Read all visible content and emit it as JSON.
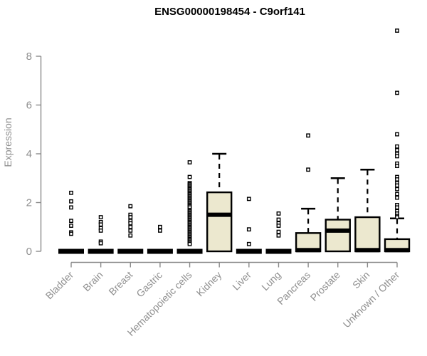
{
  "title": "ENSG00000198454 - C9orf141",
  "chart_data": {
    "type": "boxplot",
    "title": "ENSG00000198454 - C9orf141",
    "xlabel": "",
    "ylabel": "Expression",
    "ylim": [
      0,
      8
    ],
    "yticks": [
      0,
      2,
      4,
      6,
      8
    ],
    "grid": false,
    "legend": "none",
    "categories": [
      "Bladder",
      "Brain",
      "Breast",
      "Gastric",
      "Hematopoietic cells",
      "Kidney",
      "Liver",
      "Lung",
      "Pancreas",
      "Prostate",
      "Skin",
      "Unknown / Other"
    ],
    "boxes": [
      {
        "category": "Bladder",
        "q1": 0,
        "median": 0,
        "q3": 0,
        "whisker_low": 0,
        "whisker_high": 0,
        "outliers": [
          2.4,
          2.05,
          1.8,
          1.25,
          1.05,
          0.78,
          0.72
        ]
      },
      {
        "category": "Brain",
        "q1": 0,
        "median": 0,
        "q3": 0,
        "whisker_low": 0,
        "whisker_high": 0,
        "outliers": [
          1.4,
          1.2,
          1.1,
          0.95,
          0.85,
          0.4,
          0.33
        ]
      },
      {
        "category": "Breast",
        "q1": 0,
        "median": 0,
        "q3": 0,
        "whisker_low": 0,
        "whisker_high": 0,
        "outliers": [
          1.85,
          1.5,
          1.4,
          1.25,
          1.15,
          1.0,
          0.85,
          0.65
        ]
      },
      {
        "category": "Gastric",
        "q1": 0,
        "median": 0,
        "q3": 0,
        "whisker_low": 0,
        "whisker_high": 0,
        "outliers": [
          1.0,
          0.85
        ]
      },
      {
        "category": "Hematopoietic cells",
        "q1": 0,
        "median": 0,
        "q3": 0,
        "whisker_low": 0,
        "whisker_high": 0,
        "outliers": [
          3.65,
          3.05,
          2.8,
          2.75,
          2.7,
          2.65,
          2.6,
          2.55,
          2.5,
          2.45,
          2.4,
          2.35,
          2.3,
          2.25,
          2.2,
          2.15,
          2.1,
          2.05,
          2.0,
          1.95,
          1.9,
          1.85,
          1.8,
          1.7,
          1.65,
          1.6,
          1.55,
          1.5,
          1.45,
          1.4,
          1.35,
          1.3,
          1.25,
          1.2,
          1.15,
          1.1,
          1.05,
          1.0,
          0.95,
          0.9,
          0.85,
          0.8,
          0.75,
          0.7,
          0.65,
          0.6,
          0.55,
          0.5,
          0.45,
          0.4,
          0.35,
          0.3
        ]
      },
      {
        "category": "Kidney",
        "q1": 0,
        "median": 1.5,
        "q3": 2.42,
        "whisker_low": 0,
        "whisker_high": 4.0,
        "outliers": []
      },
      {
        "category": "Liver",
        "q1": 0,
        "median": 0,
        "q3": 0,
        "whisker_low": 0,
        "whisker_high": 0,
        "outliers": [
          2.15,
          0.9,
          0.3
        ]
      },
      {
        "category": "Lung",
        "q1": 0,
        "median": 0,
        "q3": 0,
        "whisker_low": 0,
        "whisker_high": 0,
        "outliers": [
          1.55,
          1.3,
          1.15,
          1.05,
          0.8,
          0.65
        ]
      },
      {
        "category": "Pancreas",
        "q1": 0,
        "median": 0.05,
        "q3": 0.75,
        "whisker_low": 0,
        "whisker_high": 1.75,
        "outliers": [
          4.75,
          3.35
        ]
      },
      {
        "category": "Prostate",
        "q1": 0,
        "median": 0.85,
        "q3": 1.3,
        "whisker_low": 0,
        "whisker_high": 3.0,
        "outliers": []
      },
      {
        "category": "Skin",
        "q1": 0,
        "median": 0.05,
        "q3": 1.4,
        "whisker_low": 0,
        "whisker_high": 3.35,
        "outliers": []
      },
      {
        "category": "Unknown / Other",
        "q1": 0,
        "median": 0.05,
        "q3": 0.5,
        "whisker_low": 0,
        "whisker_high": 1.35,
        "outliers": [
          9.05,
          6.5,
          4.8,
          4.3,
          4.15,
          4.0,
          3.9,
          3.6,
          3.5,
          3.05,
          2.95,
          2.8,
          2.7,
          2.55,
          2.35,
          2.2,
          1.9,
          1.8,
          1.65,
          1.55,
          1.45,
          1.4
        ]
      }
    ],
    "colors": {
      "box_fill": "#ece8cf",
      "box_line": "#000000",
      "axis": "#8a8a8a",
      "tick_label": "#8f8f8f",
      "title": "#000000",
      "background": "#ffffff"
    }
  }
}
